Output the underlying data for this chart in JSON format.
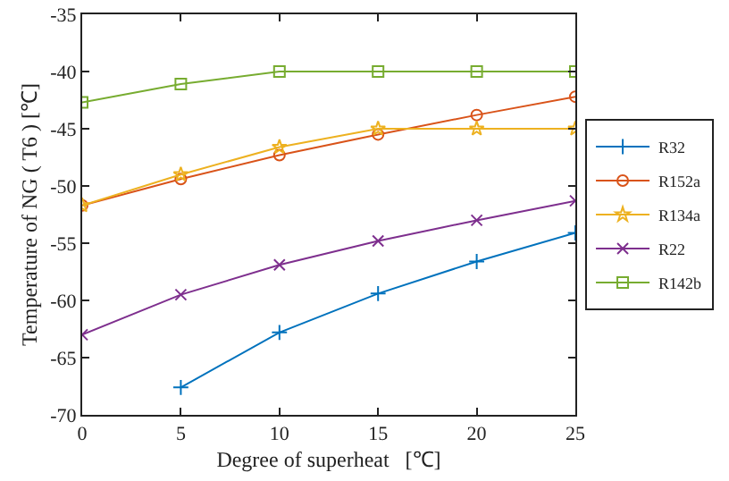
{
  "chart_data": {
    "type": "line",
    "xlabel": "Degree of superheat   [℃]",
    "ylabel": "Temperature of NG ( T6 ) [℃]",
    "x": [
      0,
      5,
      10,
      15,
      20,
      25
    ],
    "series": [
      {
        "name": "R32",
        "color": "#0072bd",
        "marker": "cross",
        "values": [
          null,
          -67.6,
          -62.8,
          -59.4,
          -56.6,
          -54.1
        ]
      },
      {
        "name": "R152a",
        "color": "#d95319",
        "marker": "circle",
        "values": [
          -51.7,
          -49.4,
          -47.3,
          -45.5,
          -43.8,
          -42.2
        ]
      },
      {
        "name": "R134a",
        "color": "#edb120",
        "marker": "star",
        "values": [
          -51.7,
          -49.0,
          -46.6,
          -45.0,
          -45.0,
          -45.0
        ]
      },
      {
        "name": "R22",
        "color": "#7e2f8e",
        "marker": "x",
        "values": [
          -63.0,
          -59.5,
          -56.9,
          -54.8,
          -53.0,
          -51.3
        ]
      },
      {
        "name": "R142b",
        "color": "#77ac30",
        "marker": "square",
        "values": [
          -42.7,
          -41.1,
          -40.0,
          -40.0,
          -40.0,
          -40.0
        ]
      }
    ],
    "xlim": [
      0,
      25
    ],
    "xticks": [
      0,
      5,
      10,
      15,
      20,
      25
    ],
    "ylim": [
      -70,
      -35
    ],
    "yticks": [
      -70,
      -65,
      -60,
      -55,
      -50,
      -45,
      -40,
      -35
    ],
    "grid": false,
    "legend": "right",
    "line_style": "solid"
  }
}
